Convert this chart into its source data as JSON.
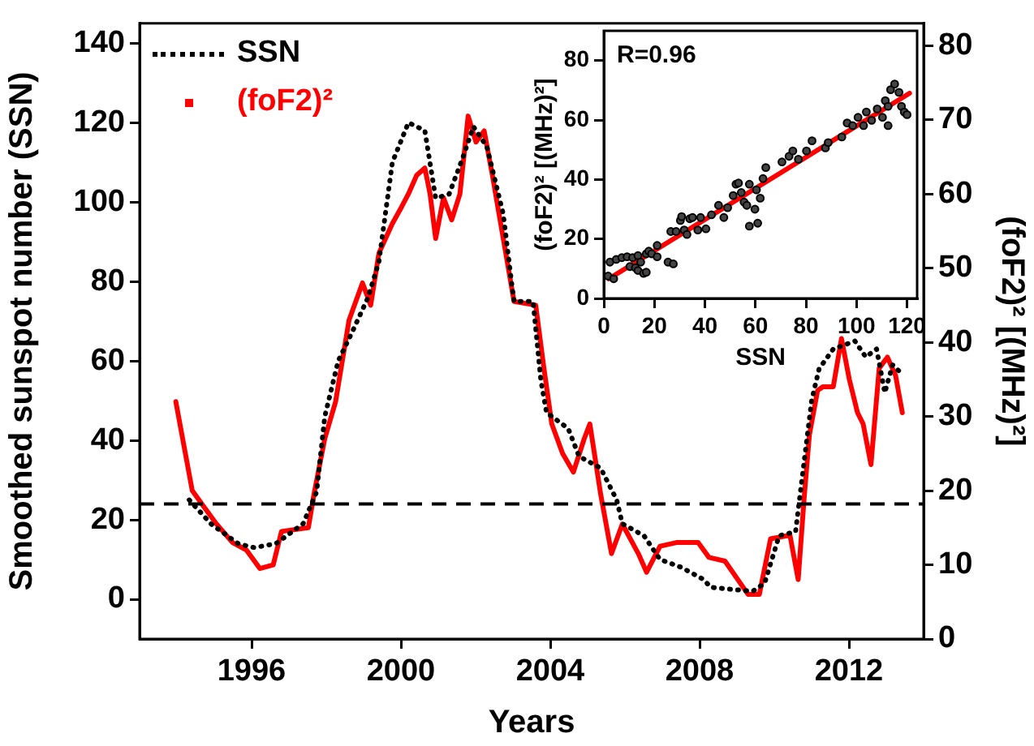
{
  "chart_data": [
    {
      "type": "line",
      "xlabel": "Years",
      "ylabel": "Smoothed sunspot number (SSN)",
      "y2label": "(foF2)² [(MHz)²]",
      "xlim": [
        1993,
        2014
      ],
      "xticks": [
        1996,
        2000,
        2004,
        2008,
        2012
      ],
      "ylim": [
        -10,
        145
      ],
      "yticks": [
        0,
        20,
        40,
        60,
        80,
        100,
        120,
        140
      ],
      "y2lim": [
        0,
        83
      ],
      "y2ticks": [
        0,
        10,
        20,
        30,
        40,
        50,
        60,
        70,
        80
      ],
      "grid": false,
      "legend": "top left",
      "marker": "none",
      "ref_lines": [
        {
          "axis": "y",
          "value": 24,
          "color": "#000000",
          "line_style": "dashed"
        }
      ],
      "series": [
        {
          "name": "SSN",
          "color": "#000000",
          "line_style": "dotted",
          "axis": "y",
          "x": [
            1994.33,
            1994.91,
            1995.64,
            1996.07,
            1996.65,
            1997.38,
            1997.74,
            1997.96,
            1998.32,
            1998.68,
            1999.12,
            1999.41,
            1999.77,
            2000.2,
            2000.64,
            2000.93,
            2001.29,
            2001.65,
            2001.94,
            2002.3,
            2002.74,
            2002.96,
            2003.03,
            2003.54,
            2003.75,
            2003.9,
            2004.19,
            2004.48,
            2004.77,
            2005.35,
            2005.78,
            2005.93,
            2006.51,
            2006.94,
            2007.52,
            2008.1,
            2008.3,
            2009.42,
            2009.74,
            2010.13,
            2010.57,
            2010.7,
            2011.0,
            2011.2,
            2011.58,
            2012.16,
            2012.45,
            2012.74,
            2012.96,
            2013.17,
            2013.39
          ],
          "values": [
            25,
            19,
            14,
            13,
            14,
            19,
            27,
            46,
            60,
            67,
            76,
            85,
            110,
            120,
            118,
            101,
            102,
            111,
            119,
            114,
            97,
            80,
            75,
            75,
            55,
            47,
            45,
            43,
            36,
            33,
            25,
            19,
            16,
            10,
            8,
            5,
            3,
            2,
            4,
            16,
            17,
            27,
            50,
            58,
            63,
            65,
            61,
            63,
            52,
            59,
            57
          ]
        },
        {
          "name": "(foF2)²",
          "color": "#ff0000",
          "line_style": "solid",
          "axis": "y2",
          "x": [
            1993.97,
            1994.19,
            1994.41,
            1994.77,
            1995.06,
            1995.49,
            1995.86,
            1996.22,
            1996.58,
            1996.8,
            1997.52,
            1997.67,
            1997.96,
            1998.25,
            1998.61,
            1998.97,
            1999.19,
            1999.41,
            1999.77,
            1999.99,
            2000.2,
            2000.42,
            2000.64,
            2000.78,
            2000.93,
            2001.14,
            2001.36,
            2001.58,
            2001.8,
            2002.01,
            2002.23,
            2002.45,
            2002.74,
            2003.03,
            2003.61,
            2003.83,
            2004.04,
            2004.33,
            2004.62,
            2004.91,
            2005.06,
            2005.35,
            2005.64,
            2005.93,
            2006.36,
            2006.58,
            2006.94,
            2007.38,
            2007.96,
            2008.25,
            2008.68,
            2009.3,
            2009.6,
            2009.9,
            2010.42,
            2010.64,
            2010.8,
            2010.94,
            2011.16,
            2011.3,
            2011.58,
            2011.8,
            2012.01,
            2012.23,
            2012.38,
            2012.59,
            2012.81,
            2013.03,
            2013.25,
            2013.43
          ],
          "values": [
            32,
            26,
            20,
            17.5,
            15.5,
            13,
            12,
            9.5,
            10,
            14.5,
            15,
            19.5,
            27,
            32,
            43,
            48,
            45,
            52,
            56,
            58,
            60,
            62.5,
            63.5,
            60,
            54,
            59.5,
            56.5,
            60,
            70.5,
            67,
            68.5,
            62.5,
            54,
            45.5,
            45,
            36.5,
            29,
            25,
            22.5,
            27,
            29,
            19.5,
            11.5,
            15.5,
            11.5,
            9,
            12.5,
            13,
            13,
            11,
            10.5,
            6,
            6,
            13.5,
            14,
            8,
            19,
            27.5,
            33.5,
            34,
            34,
            40.5,
            35,
            30.5,
            29,
            23.5,
            36.5,
            38,
            35.5,
            30.5
          ]
        }
      ]
    },
    {
      "type": "scatter",
      "xlabel": "SSN",
      "ylabel": "(foF2)² [(MHz)²]",
      "annotations": [
        "R=0.96"
      ],
      "xlim": [
        0,
        124
      ],
      "xticks": [
        0,
        20,
        40,
        60,
        80,
        100,
        120
      ],
      "ylim": [
        0,
        90
      ],
      "yticks": [
        0,
        20,
        40,
        60,
        80
      ],
      "grid": false,
      "series": [
        {
          "color": "#444444",
          "marker": "circle",
          "x": [
            1.7,
            2.4,
            3.9,
            4.9,
            7.1,
            9.2,
            10.3,
            11.4,
            12.5,
            13.5,
            13.5,
            14.6,
            15.7,
            16.8,
            16.8,
            17.8,
            18.9,
            21.1,
            21.1,
            25.4,
            27.5,
            26.5,
            28.6,
            30.3,
            30.8,
            31.8,
            32.9,
            34.0,
            35.1,
            37.2,
            38.3,
            40.4,
            42.6,
            45.4,
            47.5,
            49.0,
            51.2,
            52.3,
            53.3,
            54.4,
            55.5,
            56.6,
            57.6,
            57.6,
            59.8,
            60.4,
            60.9,
            61.9,
            63.0,
            64.1,
            70.5,
            73.3,
            74.8,
            77.0,
            80.2,
            82.4,
            87.7,
            88.8,
            94.2,
            96.3,
            98.5,
            100.6,
            102.8,
            103.9,
            106.0,
            108.2,
            110.3,
            111.4,
            112.5,
            113.5,
            115.1,
            116.8,
            117.8,
            118.9,
            120.0,
            112.5
          ],
          "values": [
            7.5,
            12.2,
            6.6,
            13.1,
            13.7,
            14.0,
            10.7,
            13.7,
            10.3,
            14.4,
            9.4,
            12.2,
            8.4,
            15.0,
            8.8,
            15.9,
            15.0,
            17.8,
            14.0,
            12.2,
            11.6,
            22.5,
            22.5,
            26.2,
            27.5,
            23.0,
            21.5,
            26.8,
            27.2,
            23.0,
            27.2,
            23.4,
            28.1,
            31.3,
            27.2,
            30.5,
            34.6,
            38.4,
            38.8,
            35.6,
            32.4,
            31.3,
            38.4,
            24.3,
            30.0,
            36.5,
            25.3,
            33.7,
            40.3,
            44.0,
            45.9,
            47.8,
            49.6,
            46.8,
            49.6,
            53.0,
            50.6,
            52.4,
            54.3,
            59.0,
            58.1,
            60.9,
            58.1,
            62.7,
            59.9,
            63.7,
            60.9,
            66.5,
            64.6,
            70.2,
            72.1,
            69.3,
            64.6,
            62.7,
            61.8,
            58.1
          ]
        },
        {
          "type": "line",
          "color": "#ff0000",
          "marker": "none",
          "x": [
            2,
            121
          ],
          "values": [
            6.6,
            69.0
          ]
        }
      ]
    }
  ]
}
